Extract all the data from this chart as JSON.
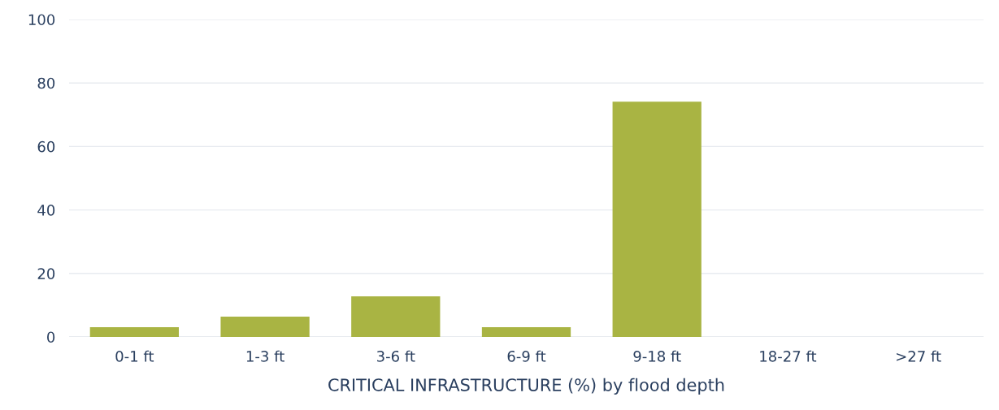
{
  "chart_data": {
    "type": "bar",
    "xlabel": "CRITICAL INFRASTRUCTURE (%) by flood depth",
    "categories": [
      "0-1 ft",
      "1-3 ft",
      "3-6 ft",
      "6-9 ft",
      "9-18 ft",
      "18-27 ft",
      ">27 ft"
    ],
    "values": [
      3.1,
      6.4,
      12.8,
      3.1,
      74.1,
      0,
      0
    ],
    "color": "#a9b443",
    "ylim": [
      0,
      100
    ],
    "yticks": [
      0,
      20,
      40,
      60,
      80,
      100
    ],
    "grid": "y",
    "legend": false
  }
}
